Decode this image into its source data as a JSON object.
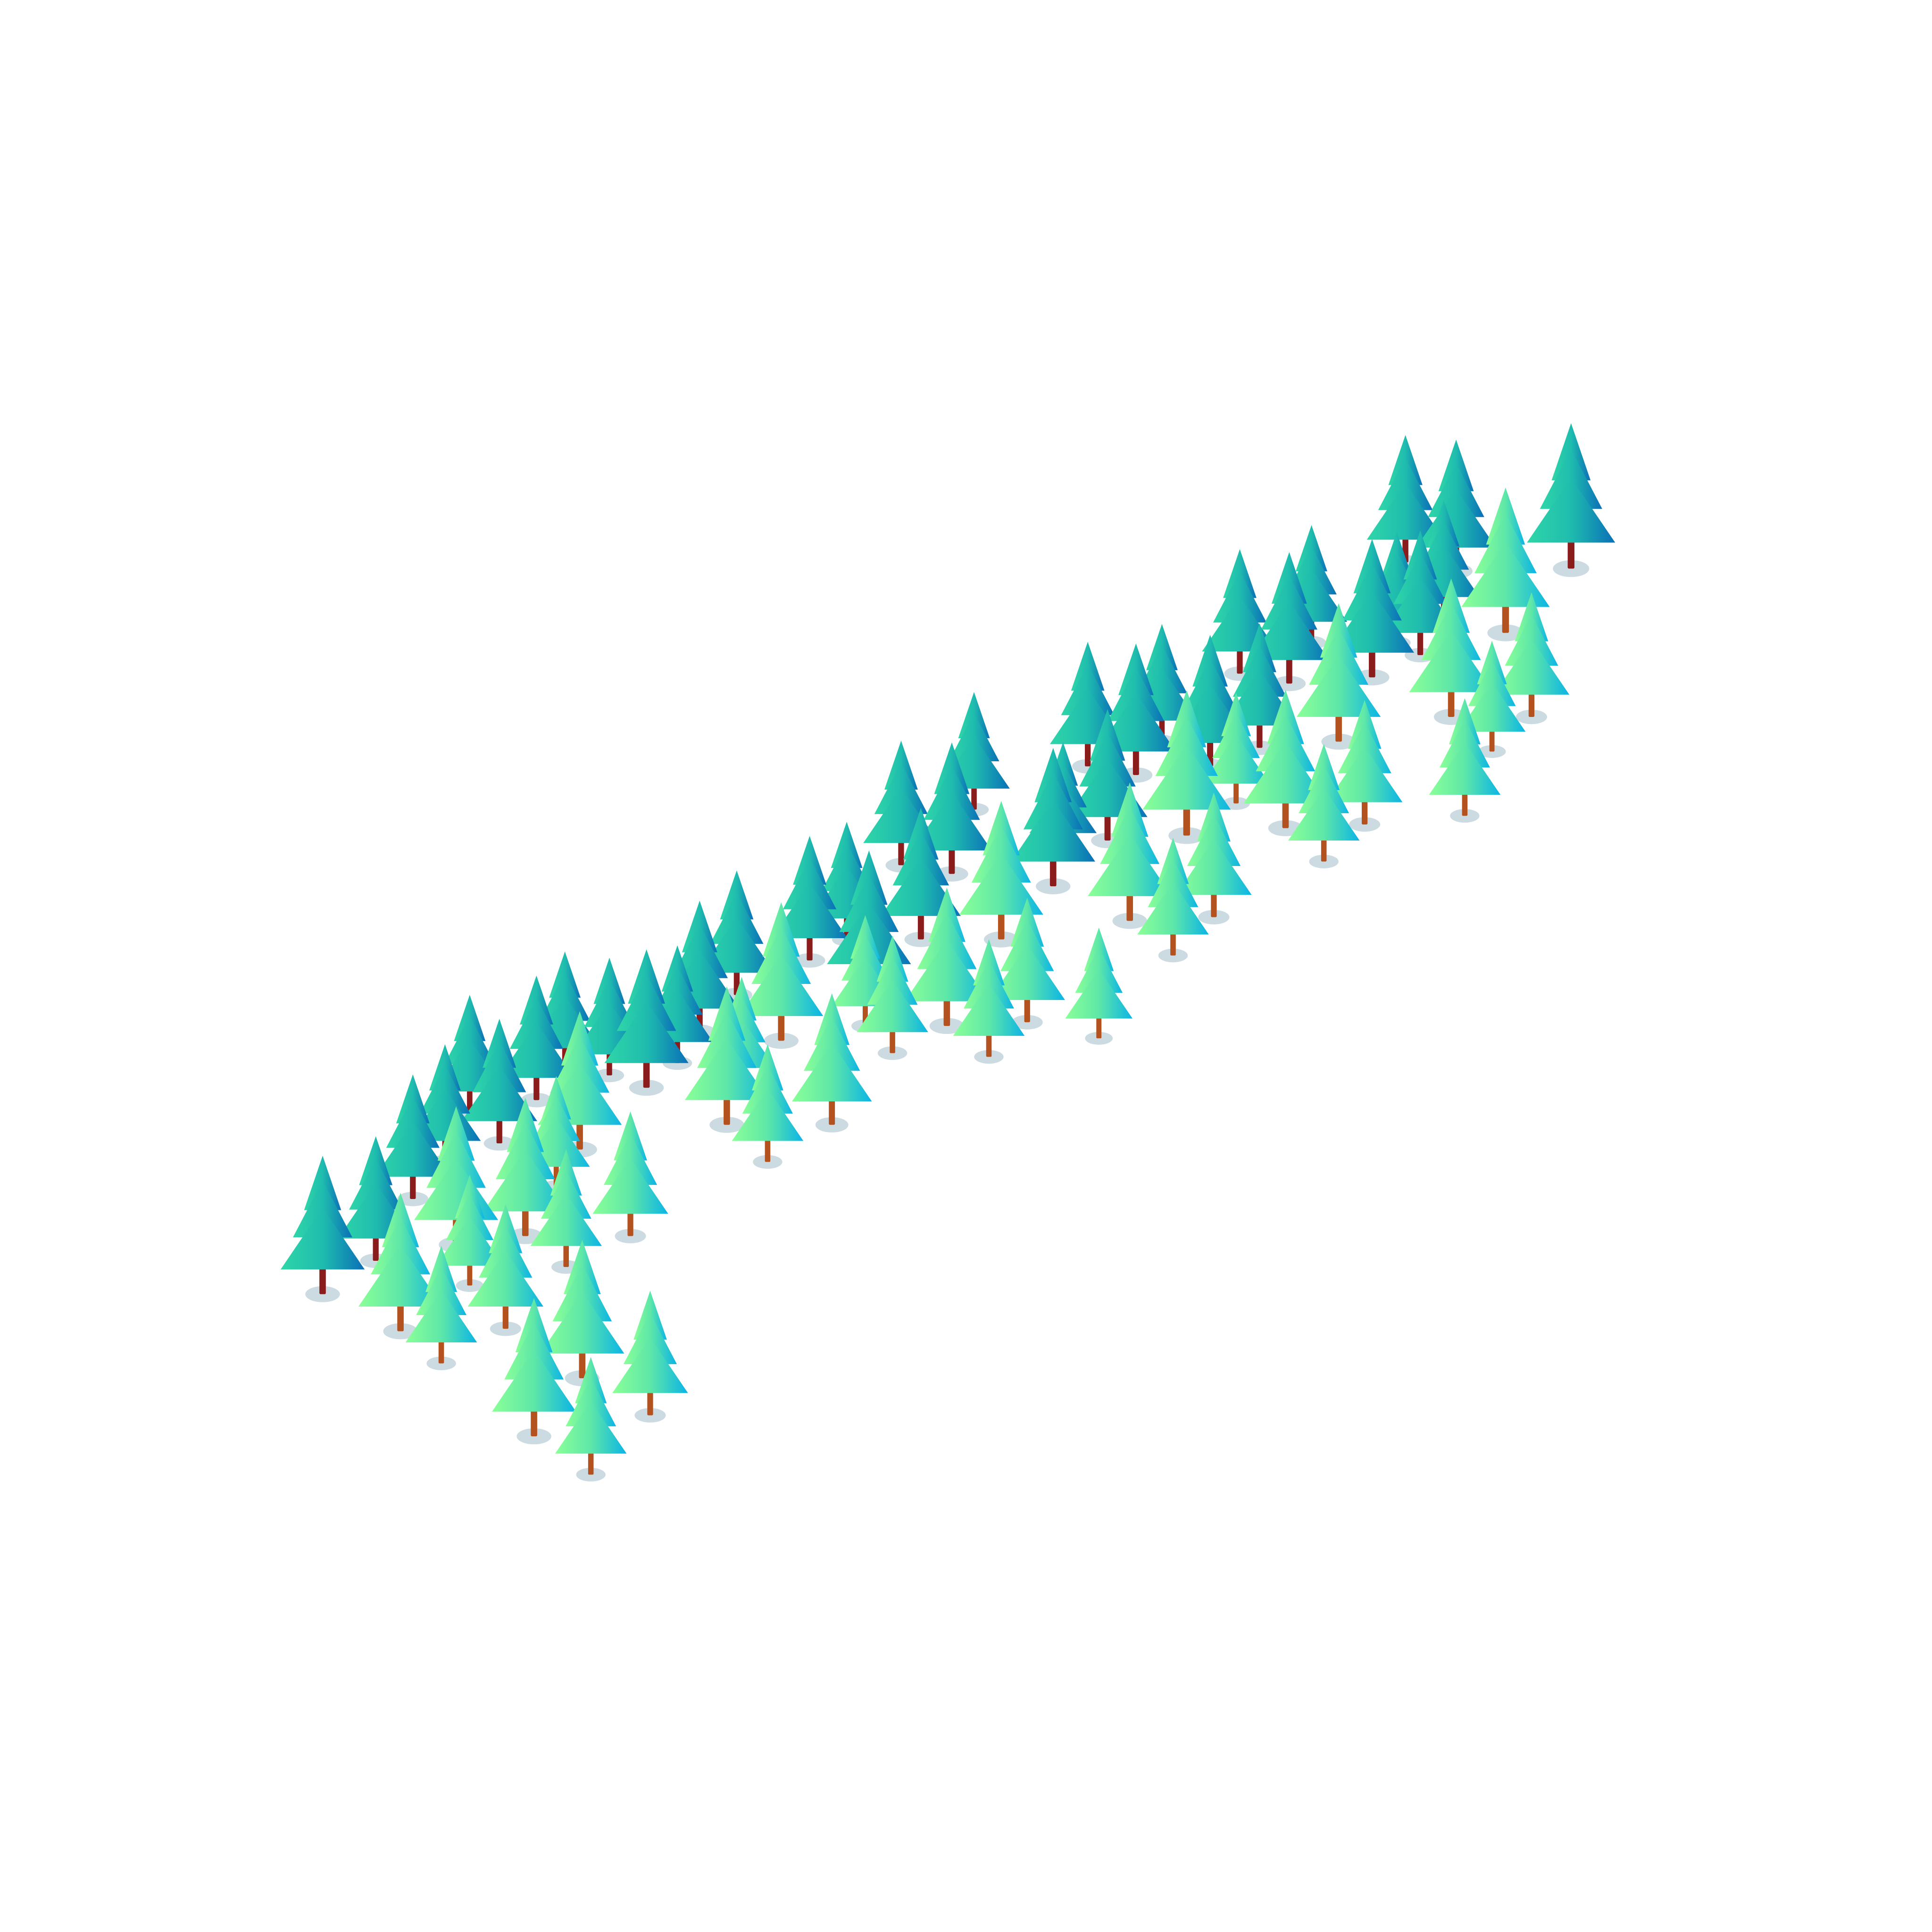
{
  "colors": {
    "background": "#ffffff",
    "shadow": "#cbdbe1",
    "trunk_dark": "#8b1c1c",
    "trunk_light": "#b3521f",
    "dark_tree_light_side": "#2fd6a8",
    "dark_tree_shade_side": "#0a6fb8",
    "light_tree_light_side": "#8bff98",
    "light_tree_shade_side": "#0bb4e6"
  },
  "forest": {
    "tree_count": 78,
    "variants": [
      "dark",
      "light"
    ]
  }
}
